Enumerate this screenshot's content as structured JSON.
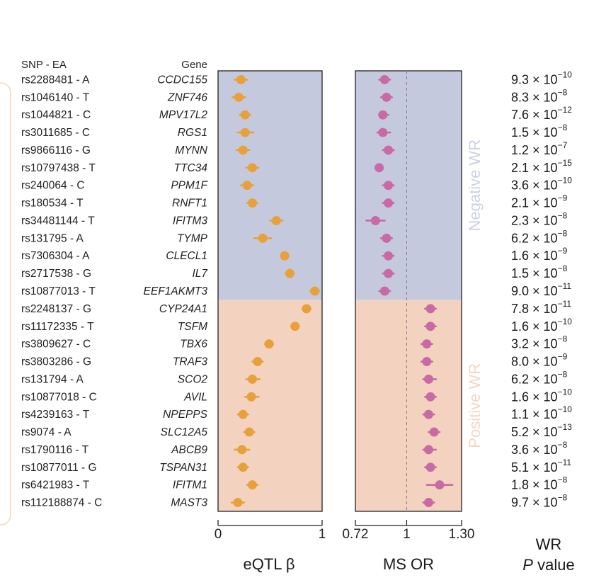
{
  "headers": {
    "snp": "SNP - EA",
    "gene": "Gene"
  },
  "rows": [
    {
      "snp": "rs2288481 - A",
      "gene": "CCDC155",
      "beta": 0.22,
      "beta_lo": 0.16,
      "beta_hi": 0.28,
      "or": 0.88,
      "or_lo": 0.85,
      "or_hi": 0.91,
      "p_base": "9.3",
      "p_exp": "−10",
      "group": "negative"
    },
    {
      "snp": "rs1046140 - T",
      "gene": "ZNF746",
      "beta": 0.2,
      "beta_lo": 0.14,
      "beta_hi": 0.26,
      "or": 0.89,
      "or_lo": 0.86,
      "or_hi": 0.92,
      "p_base": "8.3",
      "p_exp": "−8",
      "group": "negative"
    },
    {
      "snp": "rs1044821 - C",
      "gene": "MPV17L2",
      "beta": 0.26,
      "beta_lo": 0.21,
      "beta_hi": 0.31,
      "or": 0.87,
      "or_lo": 0.85,
      "or_hi": 0.9,
      "p_base": "7.6",
      "p_exp": "−12",
      "group": "negative"
    },
    {
      "snp": "rs3011685 - C",
      "gene": "RGS1",
      "beta": 0.26,
      "beta_lo": 0.19,
      "beta_hi": 0.34,
      "or": 0.87,
      "or_lo": 0.84,
      "or_hi": 0.91,
      "p_base": "1.5",
      "p_exp": "−8",
      "group": "negative"
    },
    {
      "snp": "rs9866116 - G",
      "gene": "MYNN",
      "beta": 0.24,
      "beta_lo": 0.18,
      "beta_hi": 0.3,
      "or": 0.9,
      "or_lo": 0.87,
      "or_hi": 0.93,
      "p_base": "1.2",
      "p_exp": "−7",
      "group": "negative"
    },
    {
      "snp": "rs10797438 - T",
      "gene": "TTC34",
      "beta": 0.33,
      "beta_lo": 0.27,
      "beta_hi": 0.39,
      "or": 0.85,
      "or_lo": 0.83,
      "or_hi": 0.87,
      "p_base": "2.1",
      "p_exp": "−15",
      "group": "negative"
    },
    {
      "snp": "rs240064 - C",
      "gene": "PPM1F",
      "beta": 0.28,
      "beta_lo": 0.22,
      "beta_hi": 0.34,
      "or": 0.9,
      "or_lo": 0.87,
      "or_hi": 0.93,
      "p_base": "3.6",
      "p_exp": "−10",
      "group": "negative"
    },
    {
      "snp": "rs180534 - T",
      "gene": "RNFT1",
      "beta": 0.33,
      "beta_lo": 0.28,
      "beta_hi": 0.38,
      "or": 0.9,
      "or_lo": 0.87,
      "or_hi": 0.93,
      "p_base": "2.1",
      "p_exp": "−9",
      "group": "negative"
    },
    {
      "snp": "rs34481144 - T",
      "gene": "IFITM3",
      "beta": 0.56,
      "beta_lo": 0.5,
      "beta_hi": 0.62,
      "or": 0.83,
      "or_lo": 0.78,
      "or_hi": 0.88,
      "p_base": "2.3",
      "p_exp": "−8",
      "group": "negative"
    },
    {
      "snp": "rs131795 - A",
      "gene": "TYMP",
      "beta": 0.43,
      "beta_lo": 0.35,
      "beta_hi": 0.51,
      "or": 0.89,
      "or_lo": 0.86,
      "or_hi": 0.92,
      "p_base": "6.2",
      "p_exp": "−8",
      "group": "negative"
    },
    {
      "snp": "rs7306304 - A",
      "gene": "CLECL1",
      "beta": 0.64,
      "beta_lo": 0.6,
      "beta_hi": 0.68,
      "or": 0.9,
      "or_lo": 0.87,
      "or_hi": 0.93,
      "p_base": "1.6",
      "p_exp": "−9",
      "group": "negative"
    },
    {
      "snp": "rs2717538 - G",
      "gene": "IL7",
      "beta": 0.69,
      "beta_lo": 0.65,
      "beta_hi": 0.73,
      "or": 0.9,
      "or_lo": 0.87,
      "or_hi": 0.93,
      "p_base": "1.5",
      "p_exp": "−8",
      "group": "negative"
    },
    {
      "snp": "rs10877013 - T",
      "gene": "EEF1AKMT3",
      "beta": 0.93,
      "beta_lo": 0.89,
      "beta_hi": 0.97,
      "or": 0.88,
      "or_lo": 0.85,
      "or_hi": 0.91,
      "p_base": "9.0",
      "p_exp": "−11",
      "group": "negative"
    },
    {
      "snp": "rs2248137 - G",
      "gene": "CYP24A1",
      "beta": 0.85,
      "beta_lo": 0.81,
      "beta_hi": 0.89,
      "or": 1.13,
      "or_lo": 1.1,
      "or_hi": 1.16,
      "p_base": "7.8",
      "p_exp": "−11",
      "group": "positive"
    },
    {
      "snp": "rs11172335 - T",
      "gene": "TSFM",
      "beta": 0.74,
      "beta_lo": 0.7,
      "beta_hi": 0.78,
      "or": 1.13,
      "or_lo": 1.1,
      "or_hi": 1.16,
      "p_base": "1.6",
      "p_exp": "−10",
      "group": "positive"
    },
    {
      "snp": "rs3809627 - C",
      "gene": "TBX6",
      "beta": 0.49,
      "beta_lo": 0.45,
      "beta_hi": 0.53,
      "or": 1.11,
      "or_lo": 1.08,
      "or_hi": 1.14,
      "p_base": "3.2",
      "p_exp": "−8",
      "group": "positive"
    },
    {
      "snp": "rs3803286 - G",
      "gene": "TRAF3",
      "beta": 0.38,
      "beta_lo": 0.33,
      "beta_hi": 0.43,
      "or": 1.11,
      "or_lo": 1.08,
      "or_hi": 1.14,
      "p_base": "8.0",
      "p_exp": "−9",
      "group": "positive"
    },
    {
      "snp": "rs131794 - A",
      "gene": "SCO2",
      "beta": 0.33,
      "beta_lo": 0.27,
      "beta_hi": 0.4,
      "or": 1.12,
      "or_lo": 1.09,
      "or_hi": 1.16,
      "p_base": "6.2",
      "p_exp": "−8",
      "group": "positive"
    },
    {
      "snp": "rs10877018 - C",
      "gene": "AVIL",
      "beta": 0.32,
      "beta_lo": 0.26,
      "beta_hi": 0.39,
      "or": 1.13,
      "or_lo": 1.1,
      "or_hi": 1.16,
      "p_base": "1.6",
      "p_exp": "−10",
      "group": "positive"
    },
    {
      "snp": "rs4239163 - T",
      "gene": "NPEPPS",
      "beta": 0.24,
      "beta_lo": 0.19,
      "beta_hi": 0.29,
      "or": 1.12,
      "or_lo": 1.09,
      "or_hi": 1.15,
      "p_base": "1.1",
      "p_exp": "−10",
      "group": "positive"
    },
    {
      "snp": "rs9074 - A",
      "gene": "SLC12A5",
      "beta": 0.3,
      "beta_lo": 0.25,
      "beta_hi": 0.35,
      "or": 1.15,
      "or_lo": 1.12,
      "or_hi": 1.18,
      "p_base": "5.2",
      "p_exp": "−13",
      "group": "positive"
    },
    {
      "snp": "rs1790116 - T",
      "gene": "ABCB9",
      "beta": 0.23,
      "beta_lo": 0.16,
      "beta_hi": 0.3,
      "or": 1.12,
      "or_lo": 1.09,
      "or_hi": 1.16,
      "p_base": "3.6",
      "p_exp": "−8",
      "group": "positive"
    },
    {
      "snp": "rs10877011 - G",
      "gene": "TSPAN31",
      "beta": 0.24,
      "beta_lo": 0.19,
      "beta_hi": 0.29,
      "or": 1.13,
      "or_lo": 1.1,
      "or_hi": 1.16,
      "p_base": "5.1",
      "p_exp": "−11",
      "group": "positive"
    },
    {
      "snp": "rs6421983 - T",
      "gene": "IFITM1",
      "beta": 0.33,
      "beta_lo": 0.28,
      "beta_hi": 0.38,
      "or": 1.18,
      "or_lo": 1.11,
      "or_hi": 1.25,
      "p_base": "1.8",
      "p_exp": "−8",
      "group": "positive"
    },
    {
      "snp": "rs112188874 - C",
      "gene": "MAST3",
      "beta": 0.19,
      "beta_lo": 0.13,
      "beta_hi": 0.25,
      "or": 1.12,
      "or_lo": 1.09,
      "or_hi": 1.15,
      "p_base": "9.7",
      "p_exp": "−8",
      "group": "positive"
    }
  ],
  "chart_data": {
    "type": "scatter",
    "panels": [
      {
        "name": "eQTL β",
        "xlim": [
          0,
          1
        ],
        "ticks": [
          {
            "v": 0,
            "label": "0"
          },
          {
            "v": 1,
            "label": "1"
          }
        ],
        "field": "beta",
        "color": "#e8a13a"
      },
      {
        "name": "MS OR",
        "xlim": [
          0.72,
          1.3
        ],
        "ticks": [
          {
            "v": 0.72,
            "label": "0.72"
          },
          {
            "v": 1,
            "label": "1"
          },
          {
            "v": 1.3,
            "label": "1.30"
          }
        ],
        "field": "or",
        "color": "#c96aa6",
        "reference_line": 1
      }
    ],
    "groups": [
      {
        "key": "negative",
        "label": "Negative WR",
        "bg": "#c4c9de",
        "text": "#cdd1e3"
      },
      {
        "key": "positive",
        "label": "Positive WR",
        "bg": "#f3d3bf",
        "text": "#f2d7c4"
      }
    ]
  },
  "axis_titles": {
    "beta": "eQTL β",
    "or": "MS OR",
    "wr_line1": "WR",
    "wr_p": "P",
    "wr_value": " value"
  },
  "p_prefix": " × 10"
}
